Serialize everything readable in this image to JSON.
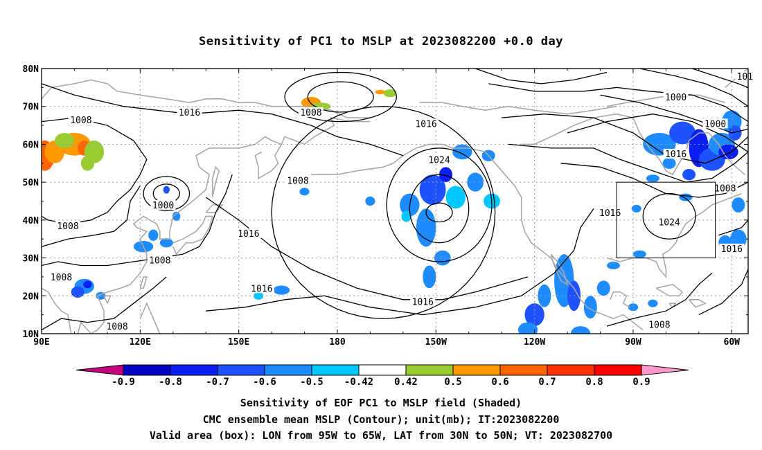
{
  "title": "Sensitivity of PC1 to MSLP at 2023082200 +0.0 day",
  "footer": {
    "line1": "Sensitivity of EOF PC1 to MSLP field (Shaded)",
    "line2": "CMC ensemble mean MSLP (Contour); unit(mb); IT:2023082200",
    "line3": "Valid area (box): LON from 95W to 65W, LAT from 30N to 50N; VT: 2023082700"
  },
  "map": {
    "lon_range": [
      90,
      305
    ],
    "lat_range": [
      10,
      80
    ],
    "lon_ticks": [
      {
        "lon": 90,
        "label": "90E"
      },
      {
        "lon": 120,
        "label": "120E"
      },
      {
        "lon": 150,
        "label": "150E"
      },
      {
        "lon": 180,
        "label": "180"
      },
      {
        "lon": 210,
        "label": "150W"
      },
      {
        "lon": 240,
        "label": "120W"
      },
      {
        "lon": 270,
        "label": "90W"
      },
      {
        "lon": 300,
        "label": "60W"
      }
    ],
    "lat_ticks": [
      {
        "lat": 10,
        "label": "10N"
      },
      {
        "lat": 20,
        "label": "20N"
      },
      {
        "lat": 30,
        "label": "30N"
      },
      {
        "lat": 40,
        "label": "40N"
      },
      {
        "lat": 50,
        "label": "50N"
      },
      {
        "lat": 60,
        "label": "60N"
      },
      {
        "lat": 70,
        "label": "70N"
      },
      {
        "lat": 80,
        "label": "80N"
      }
    ],
    "valid_box": {
      "lon_min": 265,
      "lon_max": 295,
      "lat_min": 30,
      "lat_max": 50
    },
    "contour_labels": [
      {
        "lon": 135,
        "lat": 68.5,
        "text": "1016"
      },
      {
        "lon": 102,
        "lat": 66.5,
        "text": "1008"
      },
      {
        "lon": 172,
        "lat": 68.5,
        "text": "1008"
      },
      {
        "lon": 207,
        "lat": 65.5,
        "text": "1016"
      },
      {
        "lon": 283,
        "lat": 72.5,
        "text": "1000"
      },
      {
        "lon": 304,
        "lat": 78,
        "text": "101"
      },
      {
        "lon": 295,
        "lat": 65.5,
        "text": "1000"
      },
      {
        "lon": 283,
        "lat": 57.5,
        "text": "1016"
      },
      {
        "lon": 211,
        "lat": 56,
        "text": "1024"
      },
      {
        "lon": 168,
        "lat": 50.5,
        "text": "1008"
      },
      {
        "lon": 127,
        "lat": 44,
        "text": "1000"
      },
      {
        "lon": 98,
        "lat": 38.5,
        "text": "1008"
      },
      {
        "lon": 153,
        "lat": 36.5,
        "text": "1016"
      },
      {
        "lon": 126,
        "lat": 29.5,
        "text": "1008"
      },
      {
        "lon": 157,
        "lat": 22,
        "text": "1016"
      },
      {
        "lon": 96,
        "lat": 25,
        "text": "1008"
      },
      {
        "lon": 113,
        "lat": 12,
        "text": "1008"
      },
      {
        "lon": 206,
        "lat": 18.5,
        "text": "1016"
      },
      {
        "lon": 263,
        "lat": 42,
        "text": "1016"
      },
      {
        "lon": 281,
        "lat": 39.5,
        "text": "1024"
      },
      {
        "lon": 298,
        "lat": 48.5,
        "text": "1008"
      },
      {
        "lon": 300,
        "lat": 32.5,
        "text": "1016"
      },
      {
        "lon": 278,
        "lat": 12.5,
        "text": "1008"
      }
    ]
  },
  "colorbar": {
    "labels": [
      "-0.9",
      "-0.8",
      "-0.7",
      "-0.6",
      "-0.5",
      "-0.42",
      "0.42",
      "0.5",
      "0.6",
      "0.7",
      "0.8",
      "0.9"
    ],
    "colors": [
      "#c5007f",
      "#0000c4",
      "#0a1ff0",
      "#1d52ff",
      "#1e8cff",
      "#00c8ff",
      "#ffffff",
      "#99cc33",
      "#ff9900",
      "#ff6600",
      "#ff3300",
      "#ff0000",
      "#ff99cc"
    ]
  },
  "colors": {
    "contour": "#000000",
    "coast": "#a8a8a8",
    "grid": "#999999"
  }
}
